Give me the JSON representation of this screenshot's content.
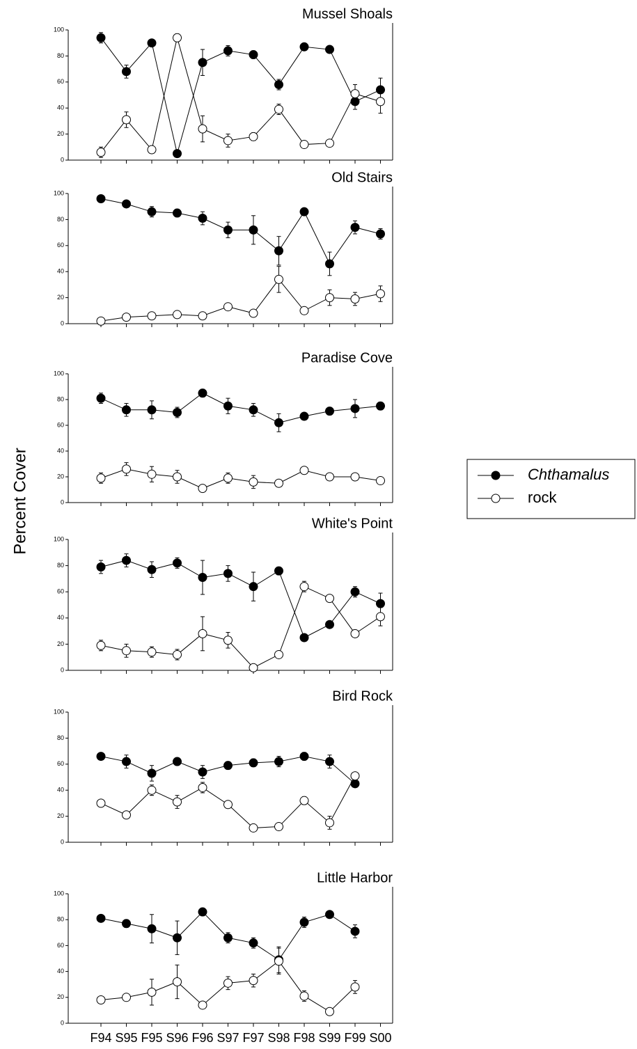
{
  "ylabel": "Percent Cover",
  "chart_data": [
    {
      "type": "line",
      "title": "Mussel Shoals",
      "ylim": [
        0,
        100
      ],
      "yticks": [
        0,
        20,
        40,
        60,
        80,
        100
      ],
      "legend": "right",
      "series": [
        {
          "name": "Chthamalus",
          "color": "#000000",
          "values": [
            94,
            68,
            90,
            5,
            75,
            84,
            81,
            58,
            87,
            85,
            45,
            54
          ],
          "errors": [
            4,
            5,
            2,
            2,
            10,
            4,
            3,
            4,
            1,
            1,
            6,
            9
          ]
        },
        {
          "name": "rock",
          "color": "#ffffff",
          "values": [
            6,
            31,
            8,
            94,
            24,
            15,
            18,
            39,
            12,
            13,
            51,
            45
          ],
          "errors": [
            4,
            6,
            1,
            3,
            10,
            5,
            3,
            4,
            1,
            1,
            7,
            9
          ]
        }
      ]
    },
    {
      "type": "line",
      "title": "Old Stairs",
      "ylim": [
        0,
        100
      ],
      "yticks": [
        0,
        20,
        40,
        60,
        80,
        100
      ],
      "series": [
        {
          "name": "Chthamalus",
          "color": "#000000",
          "values": [
            96,
            92,
            86,
            85,
            81,
            72,
            72,
            56,
            86,
            46,
            74,
            69
          ],
          "errors": [
            1,
            1,
            4,
            3,
            5,
            6,
            11,
            11,
            1,
            9,
            5,
            4
          ]
        },
        {
          "name": "rock",
          "color": "#ffffff",
          "values": [
            2,
            5,
            6,
            7,
            6,
            13,
            8,
            34,
            10,
            20,
            19,
            23
          ],
          "errors": [
            1,
            1,
            2,
            1,
            2,
            2,
            1,
            10,
            1,
            6,
            5,
            6
          ]
        }
      ]
    },
    {
      "type": "line",
      "title": "Paradise Cove",
      "ylim": [
        0,
        100
      ],
      "yticks": [
        0,
        20,
        40,
        60,
        80,
        100
      ],
      "series": [
        {
          "name": "Chthamalus",
          "color": "#000000",
          "values": [
            81,
            72,
            72,
            70,
            85,
            75,
            72,
            62,
            67,
            71,
            73,
            75
          ],
          "errors": [
            4,
            5,
            7,
            4,
            3,
            6,
            5,
            7,
            1,
            3,
            7,
            3
          ]
        },
        {
          "name": "rock",
          "color": "#ffffff",
          "values": [
            19,
            26,
            22,
            20,
            11,
            19,
            16,
            15,
            25,
            20,
            20,
            17
          ],
          "errors": [
            4,
            5,
            6,
            5,
            1,
            4,
            5,
            1,
            1,
            1,
            1,
            1
          ]
        }
      ]
    },
    {
      "type": "line",
      "title": "White's Point",
      "ylim": [
        0,
        100
      ],
      "yticks": [
        0,
        20,
        40,
        60,
        80,
        100
      ],
      "series": [
        {
          "name": "Chthamalus",
          "color": "#000000",
          "values": [
            79,
            84,
            77,
            82,
            71,
            74,
            64,
            76,
            25,
            35,
            60,
            51
          ],
          "errors": [
            5,
            5,
            6,
            4,
            13,
            6,
            11,
            3,
            2,
            2,
            4,
            8
          ]
        },
        {
          "name": "rock",
          "color": "#ffffff",
          "values": [
            19,
            15,
            14,
            12,
            28,
            23,
            2,
            12,
            64,
            55,
            28,
            41
          ],
          "errors": [
            4,
            5,
            4,
            4,
            13,
            6,
            1,
            1,
            4,
            1,
            2,
            7
          ]
        }
      ]
    },
    {
      "type": "line",
      "title": "Bird Rock",
      "ylim": [
        0,
        100
      ],
      "yticks": [
        0,
        20,
        40,
        60,
        80,
        100
      ],
      "series": [
        {
          "name": "Chthamalus",
          "color": "#000000",
          "values": [
            66,
            62,
            53,
            62,
            54,
            59,
            61,
            62,
            66,
            62,
            45,
            null
          ],
          "errors": [
            2,
            5,
            6,
            3,
            5,
            3,
            3,
            4,
            3,
            5,
            2,
            null
          ]
        },
        {
          "name": "rock",
          "color": "#ffffff",
          "values": [
            30,
            21,
            40,
            31,
            42,
            29,
            11,
            12,
            32,
            15,
            51,
            null
          ],
          "errors": [
            1,
            1,
            4,
            5,
            4,
            2,
            1,
            1,
            3,
            5,
            2,
            null
          ]
        }
      ]
    },
    {
      "type": "line",
      "title": "Little Harbor",
      "ylim": [
        0,
        100
      ],
      "yticks": [
        0,
        20,
        40,
        60,
        80,
        100
      ],
      "categories": [
        "F94",
        "S95",
        "F95",
        "S96",
        "F96",
        "S97",
        "F97",
        "S98",
        "F98",
        "S99",
        "F99",
        "S00"
      ],
      "series": [
        {
          "name": "Chthamalus",
          "color": "#000000",
          "values": [
            81,
            77,
            73,
            66,
            86,
            66,
            62,
            49,
            78,
            84,
            71,
            null
          ],
          "errors": [
            1,
            3,
            11,
            13,
            3,
            4,
            4,
            10,
            4,
            1,
            5,
            null
          ]
        },
        {
          "name": "rock",
          "color": "#ffffff",
          "values": [
            18,
            20,
            24,
            32,
            14,
            31,
            33,
            48,
            21,
            9,
            28,
            null
          ],
          "errors": [
            1,
            2,
            10,
            13,
            2,
            5,
            5,
            10,
            4,
            1,
            5,
            null
          ]
        }
      ]
    }
  ]
}
